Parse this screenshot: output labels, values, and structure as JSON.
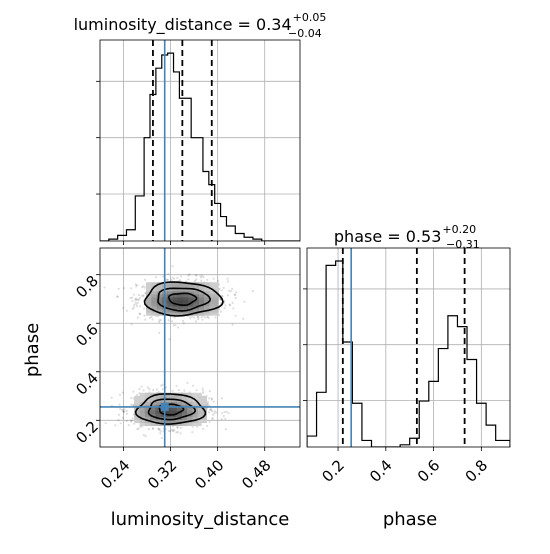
{
  "chart_data": {
    "type": "corner",
    "parameters": [
      "luminosity_distance",
      "phase"
    ],
    "grid": true,
    "truth": {
      "luminosity_distance": 0.31,
      "phase": 0.255
    },
    "panels": [
      {
        "kind": "histogram",
        "parameter": "luminosity_distance",
        "title": {
          "main": "luminosity_distance = 0.34",
          "plus": "+0.05",
          "minus": "−0.04"
        },
        "xlim": [
          0.2,
          0.54
        ],
        "quantiles": [
          0.29,
          0.34,
          0.39
        ],
        "bin_edges": [
          0.2,
          0.215,
          0.23,
          0.245,
          0.26,
          0.275,
          0.285,
          0.295,
          0.305,
          0.315,
          0.325,
          0.335,
          0.345,
          0.355,
          0.365,
          0.375,
          0.385,
          0.395,
          0.405,
          0.415,
          0.43,
          0.445,
          0.46,
          0.475,
          0.49,
          0.505,
          0.54
        ],
        "counts": [
          0,
          1,
          3,
          6,
          24,
          55,
          78,
          92,
          99,
          100,
          90,
          76,
          76,
          55,
          55,
          37,
          30,
          20,
          13,
          8,
          4,
          2,
          1,
          0,
          0,
          0
        ]
      },
      {
        "kind": "histogram",
        "parameter": "phase",
        "title": {
          "main": "phase = 0.53",
          "plus": "+0.20",
          "minus": "−0.31"
        },
        "xlim": [
          0.07,
          0.92
        ],
        "quantiles": [
          0.22,
          0.53,
          0.73
        ],
        "bin_edges": [
          0.07,
          0.11,
          0.15,
          0.19,
          0.22,
          0.26,
          0.3,
          0.34,
          0.38,
          0.42,
          0.46,
          0.5,
          0.54,
          0.58,
          0.62,
          0.66,
          0.7,
          0.74,
          0.78,
          0.82,
          0.86,
          0.92
        ],
        "counts": [
          5,
          25,
          83,
          85,
          48,
          20,
          3,
          0,
          0,
          0,
          1,
          4,
          21,
          30,
          45,
          60,
          55,
          40,
          20,
          10,
          3
        ]
      },
      {
        "kind": "2d",
        "x_parameter": "luminosity_distance",
        "y_parameter": "phase",
        "xlim": [
          0.2,
          0.54
        ],
        "ylim": [
          0.09,
          0.91
        ],
        "modes": [
          {
            "center": [
              0.34,
              0.7
            ],
            "spread": [
              0.04,
              0.055
            ]
          },
          {
            "center": [
              0.32,
              0.245
            ],
            "spread": [
              0.035,
              0.05
            ]
          }
        ]
      }
    ],
    "axes": {
      "luminosity_distance": {
        "label": "luminosity_distance",
        "ticks": [
          "0.24",
          "0.32",
          "0.40",
          "0.48"
        ]
      },
      "phase": {
        "label": "phase",
        "ticks": [
          "0.2",
          "0.4",
          "0.6",
          "0.8"
        ]
      }
    }
  }
}
